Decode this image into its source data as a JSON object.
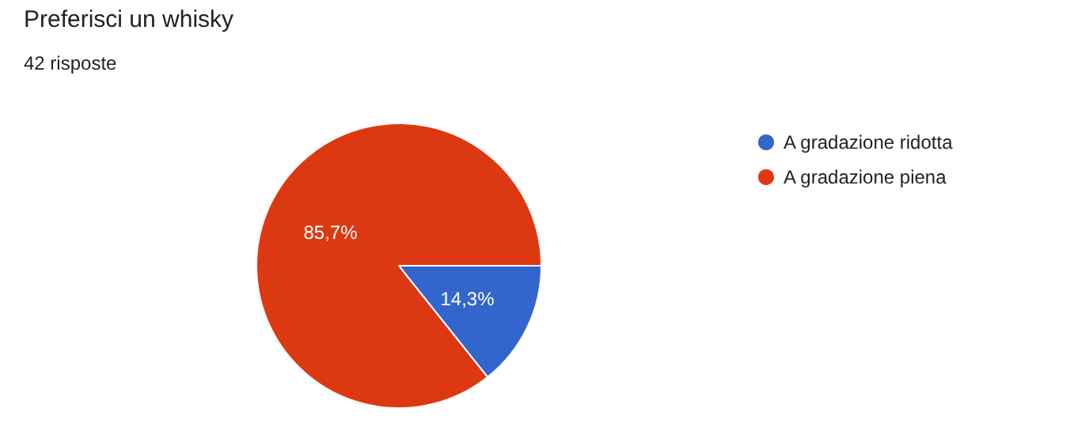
{
  "chart_data": {
    "type": "pie",
    "title": "Preferisci un whisky",
    "subtitle": "42 risposte",
    "categories": [
      "A gradazione ridotta",
      "A gradazione piena"
    ],
    "values": [
      14.3,
      85.7
    ],
    "colors": [
      "#3366cc",
      "#dc3912"
    ],
    "value_labels": [
      "14,3%",
      "85,7%"
    ],
    "legend": "right"
  }
}
